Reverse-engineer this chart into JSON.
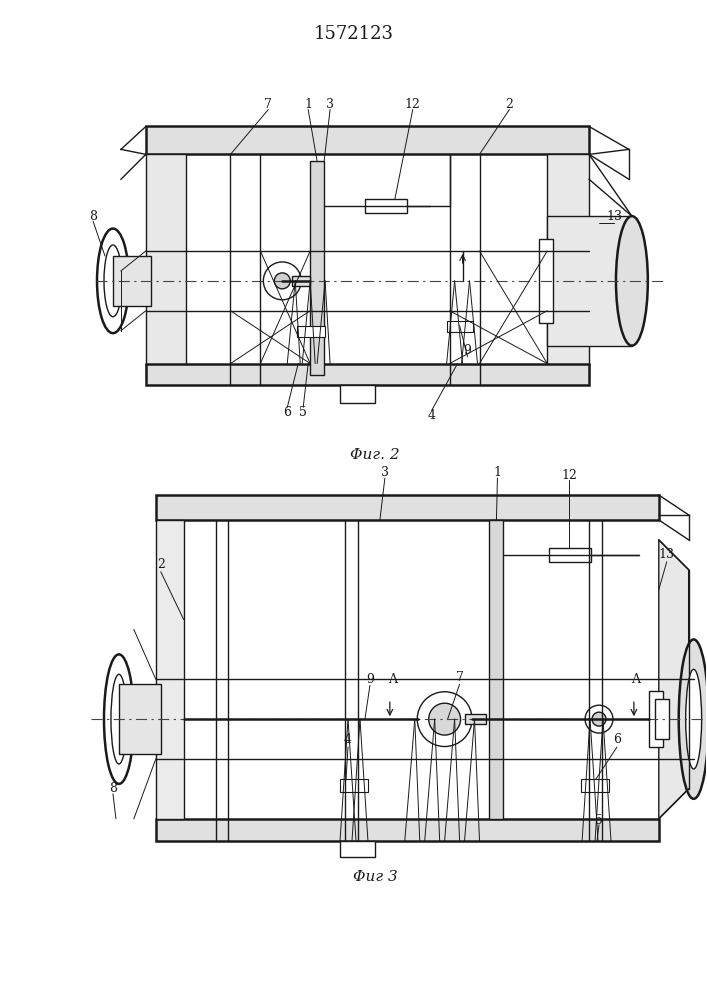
{
  "title": "1572123",
  "fig2_caption": "Φиг. 2",
  "fig3_caption": "Φиг 3",
  "line_color": "#1a1a1a",
  "lw": 1.0,
  "lw_thick": 1.8,
  "lw_thin": 0.7
}
